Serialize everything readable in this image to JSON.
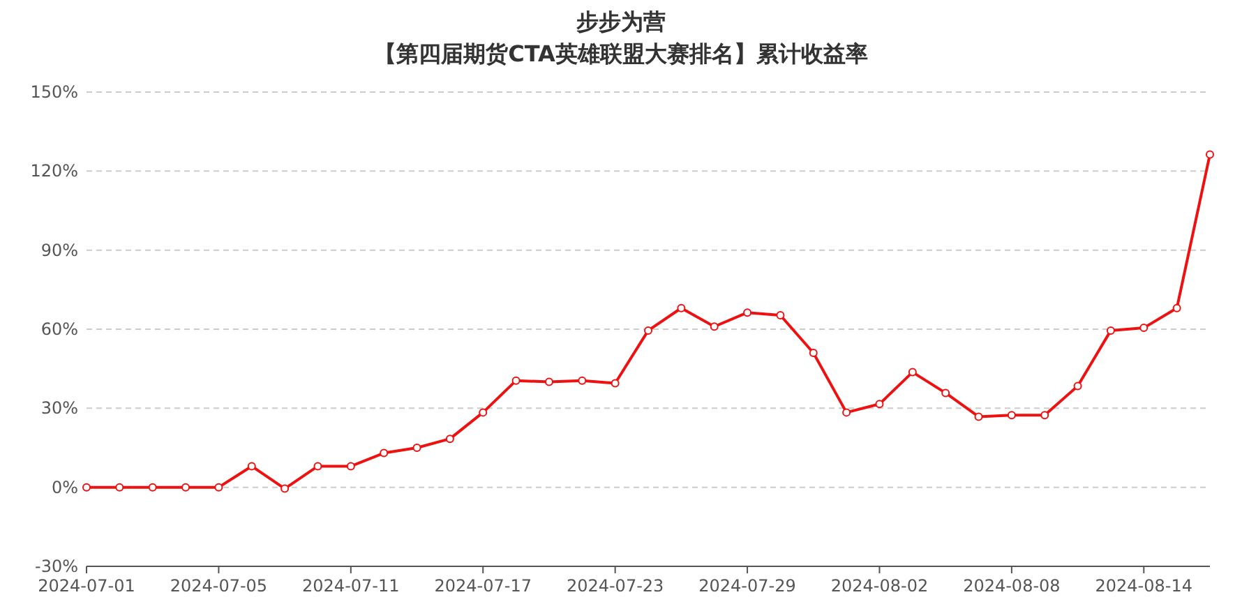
{
  "chart_data": {
    "type": "line",
    "title": "步步为营",
    "subtitle": "【第四届期货CTA英雄联盟大赛排名】累计收益率",
    "categories": [
      "2024-07-01",
      null,
      null,
      null,
      "2024-07-05",
      null,
      null,
      null,
      "2024-07-11",
      null,
      null,
      null,
      "2024-07-17",
      null,
      null,
      null,
      "2024-07-23",
      null,
      null,
      null,
      "2024-07-29",
      null,
      null,
      null,
      "2024-08-02",
      null,
      null,
      null,
      "2024-08-08",
      null,
      null,
      null,
      "2024-08-14",
      null,
      null
    ],
    "series": [
      {
        "color": "#ee1111",
        "values": [
          0,
          0,
          0,
          0,
          0,
          8,
          -0.5,
          8,
          8,
          13,
          15,
          18.4,
          28.4,
          40.5,
          40,
          40.5,
          39.5,
          59.5,
          68,
          61,
          66.3,
          65.3,
          51,
          28.4,
          31.6,
          43.7,
          35.8,
          26.8,
          27.4,
          27.4,
          38.4,
          59.5,
          60.5,
          68,
          126.3
        ]
      }
    ],
    "ylim": [
      -30,
      150
    ],
    "yticks": [
      {
        "value": -30,
        "label": "-30%"
      },
      {
        "value": 0,
        "label": "0%"
      },
      {
        "value": 30,
        "label": "30%"
      },
      {
        "value": 60,
        "label": "60%"
      },
      {
        "value": 90,
        "label": "90%"
      },
      {
        "value": 120,
        "label": "120%"
      },
      {
        "value": 150,
        "label": "150%"
      }
    ],
    "grid": "y",
    "marker": "circle",
    "line_style": "solid"
  }
}
